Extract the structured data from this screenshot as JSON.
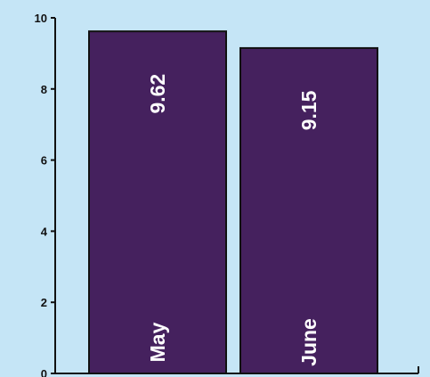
{
  "chart_data": {
    "type": "bar",
    "categories": [
      "May",
      "June"
    ],
    "values": [
      9.62,
      9.15
    ],
    "value_labels": [
      "9.62",
      "9.15"
    ],
    "title": "",
    "xlabel": "",
    "ylabel": "",
    "ylim": [
      0,
      10
    ],
    "yticks": [
      0,
      2,
      4,
      6,
      8,
      10
    ],
    "ytick_labels": [
      "0",
      "2",
      "4",
      "6",
      "8",
      "10"
    ],
    "grid": false,
    "legend": "none",
    "colors": {
      "background": "#c5e5f6",
      "bar_fill": "#45215e",
      "bar_stroke": "#111111",
      "axis": "#111111",
      "label_text": "#ffffff"
    }
  }
}
